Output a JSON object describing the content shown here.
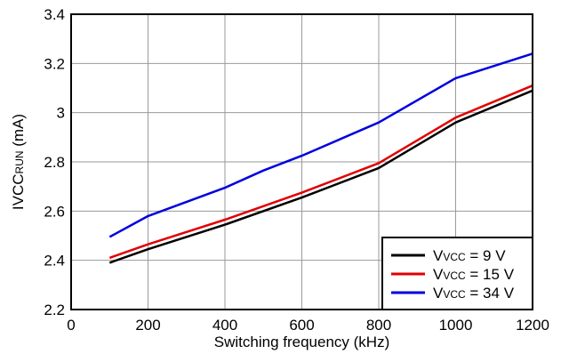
{
  "chart_data": {
    "type": "line",
    "title": "",
    "xlabel": "Switching frequency (kHz)",
    "ylabel": {
      "main": "IVCC",
      "sub": "RUN",
      "unit": " (mA)"
    },
    "xlim": [
      0,
      1200
    ],
    "ylim": [
      2.2,
      3.4
    ],
    "xticks": [
      0,
      200,
      400,
      600,
      800,
      1000,
      1200
    ],
    "xtick_labels": [
      "0",
      "200",
      "400",
      "600",
      "800",
      "1000",
      "1200"
    ],
    "yticks": [
      2.2,
      2.4,
      2.6,
      2.8,
      3.0,
      3.2,
      3.4
    ],
    "ytick_labels": [
      "2.2",
      "2.4",
      "2.6",
      "2.8",
      "3",
      "3.2",
      "3.4"
    ],
    "grid": true,
    "legend_position": "bottom-right",
    "series": [
      {
        "name": {
          "main": "V",
          "sub": "VCC",
          "rest": " = 9 V"
        },
        "color": "#000000",
        "x": [
          100,
          200,
          400,
          600,
          800,
          1000,
          1200
        ],
        "values": [
          2.39,
          2.445,
          2.545,
          2.655,
          2.775,
          2.96,
          3.09
        ]
      },
      {
        "name": {
          "main": "V",
          "sub": "VCC",
          "rest": " = 15 V"
        },
        "color": "#e00000",
        "x": [
          100,
          200,
          400,
          600,
          800,
          1000,
          1200
        ],
        "values": [
          2.41,
          2.465,
          2.565,
          2.675,
          2.795,
          2.98,
          3.11
        ]
      },
      {
        "name": {
          "main": "V",
          "sub": "VCC",
          "rest": " = 34 V"
        },
        "color": "#0000e0",
        "x": [
          100,
          200,
          400,
          500,
          600,
          800,
          1000,
          1200
        ],
        "values": [
          2.495,
          2.58,
          2.695,
          2.765,
          2.825,
          2.96,
          3.14,
          3.24
        ]
      }
    ]
  }
}
